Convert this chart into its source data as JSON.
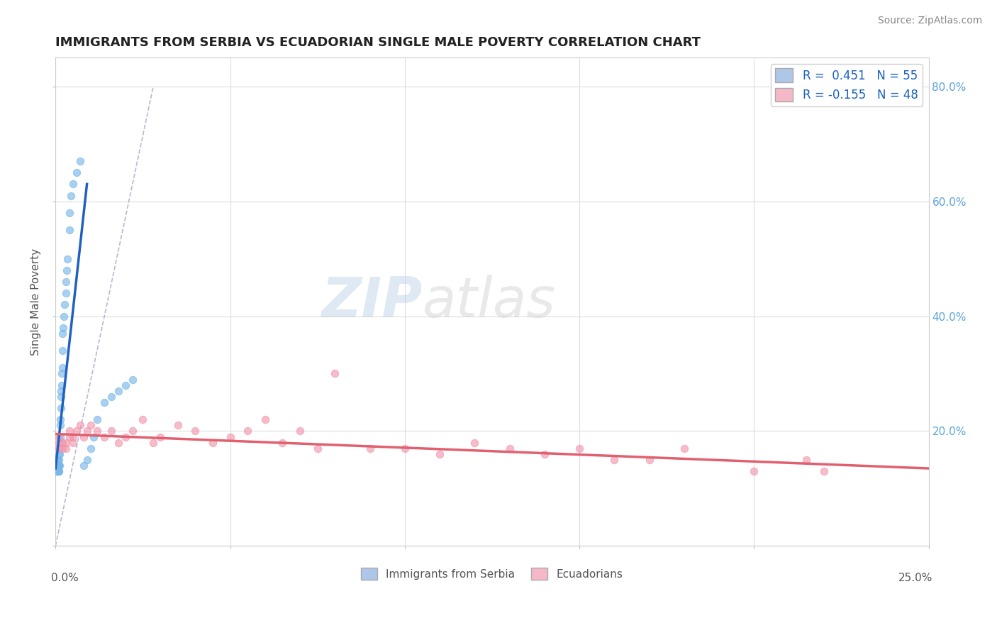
{
  "title": "IMMIGRANTS FROM SERBIA VS ECUADORIAN SINGLE MALE POVERTY CORRELATION CHART",
  "source": "Source: ZipAtlas.com",
  "ylabel": "Single Male Poverty",
  "legend1_label": "R =  0.451   N = 55",
  "legend2_label": "R = -0.155   N = 48",
  "legend1_color": "#aec6e8",
  "legend2_color": "#f4b8c8",
  "blue_scatter_x": [
    0.0002,
    0.0003,
    0.0003,
    0.0004,
    0.0005,
    0.0005,
    0.0006,
    0.0006,
    0.0007,
    0.0007,
    0.0008,
    0.0008,
    0.0008,
    0.0009,
    0.0009,
    0.001,
    0.001,
    0.001,
    0.001,
    0.0012,
    0.0012,
    0.0013,
    0.0013,
    0.0014,
    0.0015,
    0.0015,
    0.0016,
    0.0017,
    0.0018,
    0.002,
    0.002,
    0.002,
    0.0022,
    0.0024,
    0.0025,
    0.003,
    0.003,
    0.0032,
    0.0035,
    0.004,
    0.004,
    0.0045,
    0.005,
    0.006,
    0.007,
    0.008,
    0.009,
    0.01,
    0.011,
    0.012,
    0.014,
    0.016,
    0.018,
    0.02,
    0.022
  ],
  "blue_scatter_y": [
    0.14,
    0.15,
    0.13,
    0.13,
    0.14,
    0.13,
    0.14,
    0.13,
    0.14,
    0.13,
    0.14,
    0.15,
    0.13,
    0.14,
    0.13,
    0.14,
    0.15,
    0.16,
    0.13,
    0.14,
    0.16,
    0.19,
    0.21,
    0.22,
    0.24,
    0.26,
    0.27,
    0.28,
    0.3,
    0.31,
    0.34,
    0.37,
    0.38,
    0.4,
    0.42,
    0.44,
    0.46,
    0.48,
    0.5,
    0.55,
    0.58,
    0.61,
    0.63,
    0.65,
    0.67,
    0.14,
    0.15,
    0.17,
    0.19,
    0.22,
    0.25,
    0.26,
    0.27,
    0.28,
    0.29
  ],
  "pink_scatter_x": [
    0.001,
    0.001,
    0.001,
    0.002,
    0.002,
    0.003,
    0.003,
    0.004,
    0.004,
    0.005,
    0.005,
    0.006,
    0.007,
    0.008,
    0.009,
    0.01,
    0.012,
    0.014,
    0.016,
    0.018,
    0.02,
    0.022,
    0.025,
    0.028,
    0.03,
    0.035,
    0.04,
    0.045,
    0.05,
    0.055,
    0.06,
    0.065,
    0.07,
    0.075,
    0.08,
    0.09,
    0.1,
    0.11,
    0.12,
    0.13,
    0.14,
    0.15,
    0.16,
    0.17,
    0.18,
    0.2,
    0.215,
    0.22
  ],
  "pink_scatter_y": [
    0.17,
    0.18,
    0.19,
    0.17,
    0.18,
    0.17,
    0.18,
    0.2,
    0.19,
    0.19,
    0.18,
    0.2,
    0.21,
    0.19,
    0.2,
    0.21,
    0.2,
    0.19,
    0.2,
    0.18,
    0.19,
    0.2,
    0.22,
    0.18,
    0.19,
    0.21,
    0.2,
    0.18,
    0.19,
    0.2,
    0.22,
    0.18,
    0.2,
    0.17,
    0.3,
    0.17,
    0.17,
    0.16,
    0.18,
    0.17,
    0.16,
    0.17,
    0.15,
    0.15,
    0.17,
    0.13,
    0.15,
    0.13
  ],
  "blue_line_x": [
    0.0,
    0.009
  ],
  "blue_line_y": [
    0.135,
    0.63
  ],
  "pink_line_x": [
    0.0,
    0.25
  ],
  "pink_line_y": [
    0.195,
    0.135
  ],
  "dash_line_x": [
    0.0,
    0.028
  ],
  "dash_line_y": [
    0.0,
    0.8
  ],
  "xlim": [
    0.0,
    0.25
  ],
  "ylim": [
    0.0,
    0.85
  ],
  "blue_dot_color": "#7ab8e8",
  "pink_dot_color": "#f090a8",
  "blue_line_color": "#2060c0",
  "pink_line_color": "#e06070",
  "dash_color": "#8888bb",
  "title_color": "#222222",
  "source_color": "#888888",
  "right_tick_color": "#5ba3d9",
  "right_ytick_labels": [
    "",
    "20.0%",
    "40.0%",
    "60.0%",
    "80.0%"
  ],
  "right_ytick_vals": [
    0.0,
    0.2,
    0.4,
    0.6,
    0.8
  ]
}
